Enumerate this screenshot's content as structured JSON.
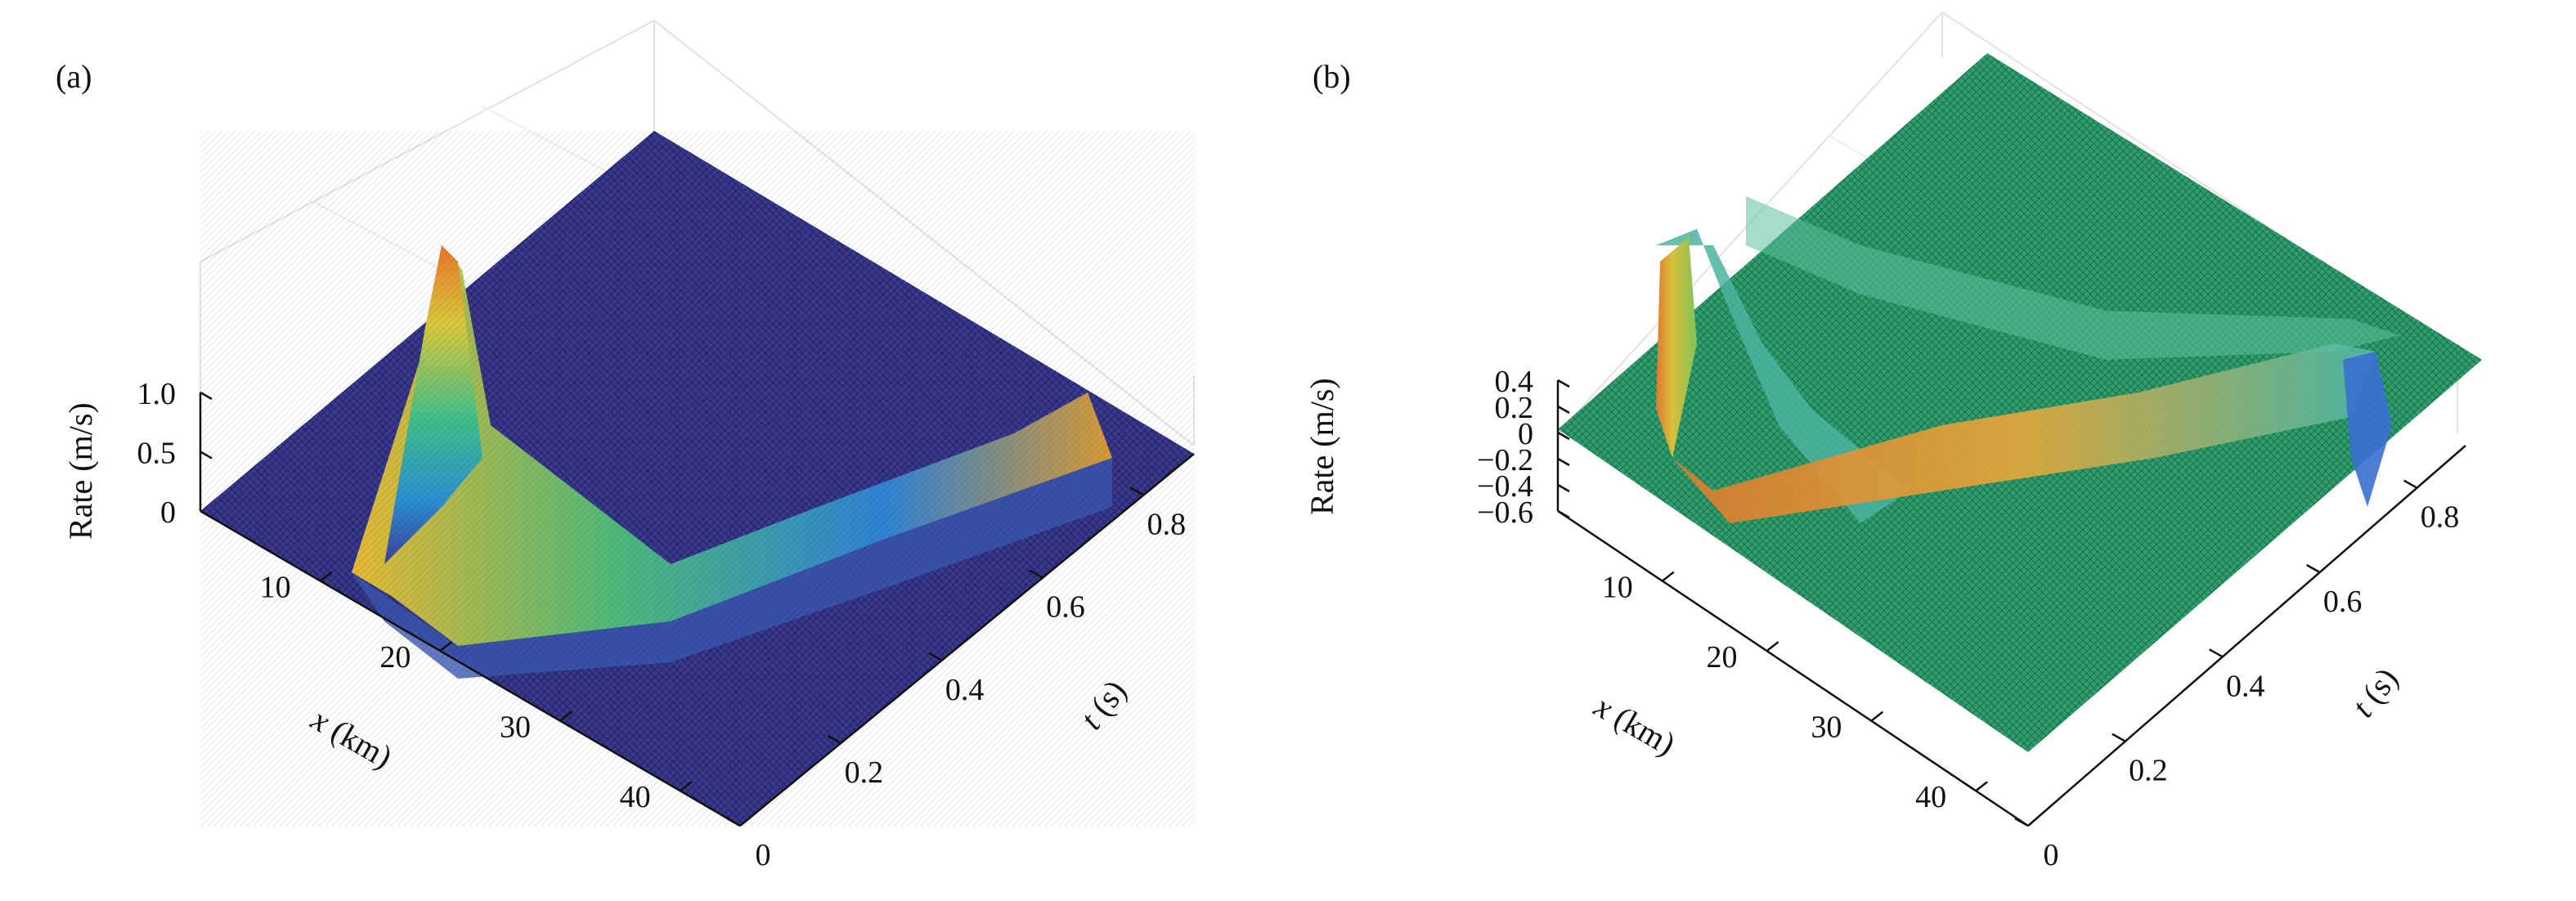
{
  "chart_data": [
    {
      "type": "surface",
      "panel_label": "(a)",
      "zlabel": "Rate (m/s)",
      "xlabel_var": "x",
      "xlabel_unit": " (km)",
      "ylabel_var": "t",
      "ylabel_unit": " (s)",
      "x_ticks": [
        "10",
        "20",
        "30",
        "40"
      ],
      "x_tick_values": [
        10,
        20,
        30,
        40
      ],
      "t_ticks": [
        "0",
        "0.2",
        "0.4",
        "0.6",
        "0.8"
      ],
      "t_tick_values": [
        0,
        0.2,
        0.4,
        0.6,
        0.8
      ],
      "z_ticks": [
        "0",
        "0.5",
        "1.0"
      ],
      "z_tick_values": [
        0,
        0.5,
        1.0
      ],
      "xlim": [
        0,
        45
      ],
      "tlim": [
        0,
        0.9
      ],
      "zlim": [
        0,
        1.0
      ],
      "colormap": "parula",
      "colors": {
        "low": "#352a87",
        "mid": "#21b9a7",
        "high": "#f9fb0e",
        "peak": "#e8752c"
      }
    },
    {
      "type": "surface",
      "panel_label": "(b)",
      "zlabel": "Rate (m/s)",
      "xlabel_var": "x",
      "xlabel_unit": " (km)",
      "ylabel_var": "t",
      "ylabel_unit": " (s)",
      "x_ticks": [
        "10",
        "20",
        "30",
        "40"
      ],
      "x_tick_values": [
        10,
        20,
        30,
        40
      ],
      "t_ticks": [
        "0",
        "0.2",
        "0.4",
        "0.6",
        "0.8"
      ],
      "t_tick_values": [
        0,
        0.2,
        0.4,
        0.6,
        0.8
      ],
      "z_ticks": [
        "−0.6",
        "−0.4",
        "−0.2",
        "0",
        "0.2",
        "0.4"
      ],
      "z_tick_values": [
        -0.6,
        -0.4,
        -0.2,
        0,
        0.2,
        0.4
      ],
      "xlim": [
        0,
        45
      ],
      "tlim": [
        0,
        0.9
      ],
      "zlim": [
        -0.6,
        0.4
      ],
      "colormap": "parula",
      "colors": {
        "low": "#352a87",
        "mid": "#2b9f6e",
        "high": "#f9fb0e",
        "peak": "#e8752c"
      }
    }
  ]
}
